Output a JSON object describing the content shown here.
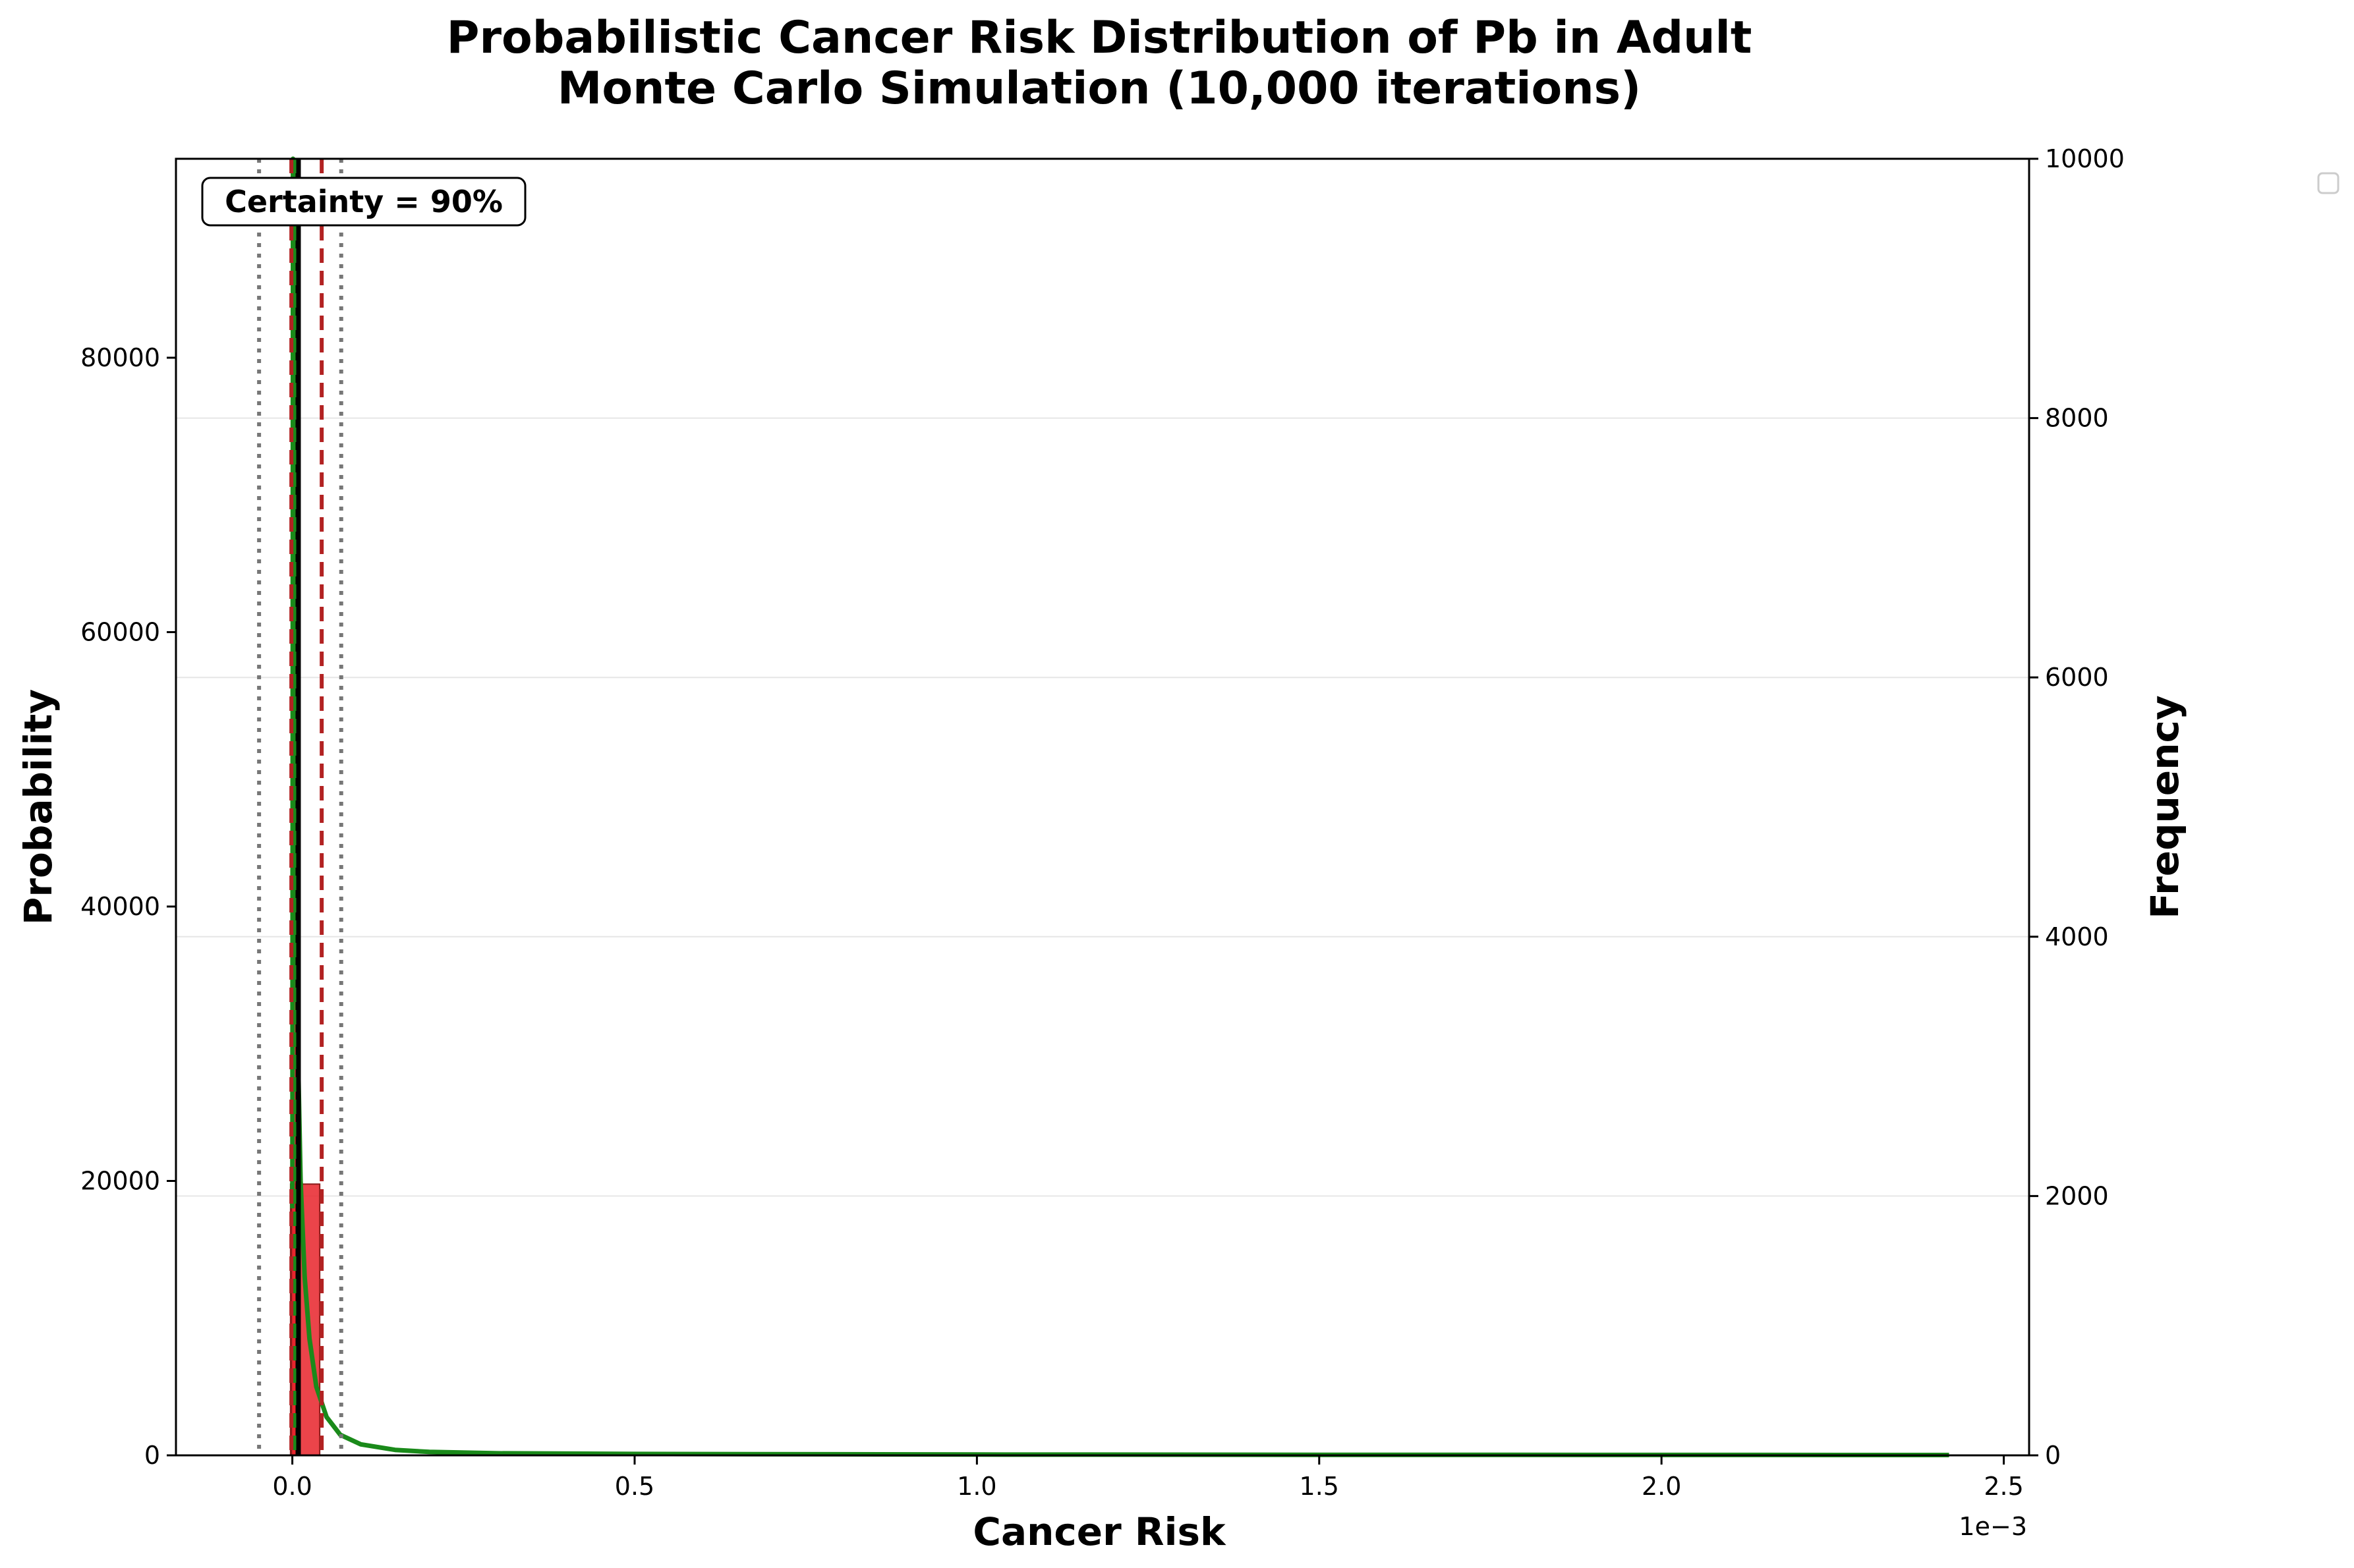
{
  "chart_data": {
    "type": "bar",
    "title_line1": "Probabilistic Cancer Risk Distribution of Pb in Adult",
    "title_line2": "Monte Carlo Simulation (10,000 iterations)",
    "xlabel": "Cancer Risk",
    "ylabel_left": "Probability",
    "ylabel_right": "Frequency",
    "x_offset_label": "1e−3",
    "x_scale": 0.001,
    "xlim": [
      -0.00017,
      0.002537
    ],
    "ylim_left": [
      0,
      94500
    ],
    "ylim_right": [
      0,
      10000
    ],
    "x_ticks": [
      0,
      0.0005,
      0.001,
      0.0015,
      0.002,
      0.0025
    ],
    "x_tick_labels": [
      "0.0",
      "0.5",
      "1.0",
      "1.5",
      "2.0",
      "2.5"
    ],
    "y_left_ticks": [
      0,
      20000,
      40000,
      60000,
      80000
    ],
    "y_right_ticks": [
      0,
      2000,
      4000,
      6000,
      8000,
      10000
    ],
    "grid": "horizontal",
    "legend_placement": "outside-top-right",
    "histogram": {
      "color": "#e8232a",
      "edge_color": "#8b1a1a",
      "bins": [
        {
          "x0": -2.62e-06,
          "x1": 4e-05,
          "frequency": 2092
        },
        {
          "x0": 4e-05,
          "x1": 4.79e-05,
          "frequency": 0
        }
      ],
      "note_count": "first bin extends beyond top of axis"
    },
    "density_curve": {
      "color": "#1a8a1a",
      "x": [
        1e-07,
        1e-06,
        2e-06,
        3e-06,
        5e-06,
        8e-06,
        1.2e-05,
        1.8e-05,
        2.5e-05,
        3.5e-05,
        5e-05,
        7e-05,
        0.0001,
        0.00015,
        0.0002,
        0.0003,
        0.0005,
        0.001,
        0.0015,
        0.002,
        0.00242
      ],
      "y": [
        18000,
        95000,
        94000,
        70000,
        45000,
        30000,
        20000,
        13000,
        8500,
        5000,
        2800,
        1500,
        800,
        400,
        250,
        150,
        100,
        60,
        40,
        30,
        25
      ]
    },
    "vertical_lines": [
      {
        "x": 8.57e-06,
        "style": "solid",
        "color": "#000000"
      },
      {
        "x": 2.86e-06,
        "style": "dashed",
        "color": "#1a8a1a"
      },
      {
        "x": -1.42e-06,
        "style": "dashed",
        "color": "#b22222"
      },
      {
        "x": 4.29e-05,
        "style": "dashed",
        "color": "#b22222"
      },
      {
        "x": -4.86e-05,
        "style": "dotted",
        "color": "#777777"
      },
      {
        "x": 7.14e-05,
        "style": "dotted",
        "color": "#777777"
      }
    ],
    "annotation": "Certainty = 90%",
    "colors": {
      "bar": "#e8232a",
      "curve": "#1a8a1a",
      "percentile": "#b22222",
      "mean": "#000000",
      "dotted": "#777777",
      "grid": "#e6e6e6"
    }
  }
}
